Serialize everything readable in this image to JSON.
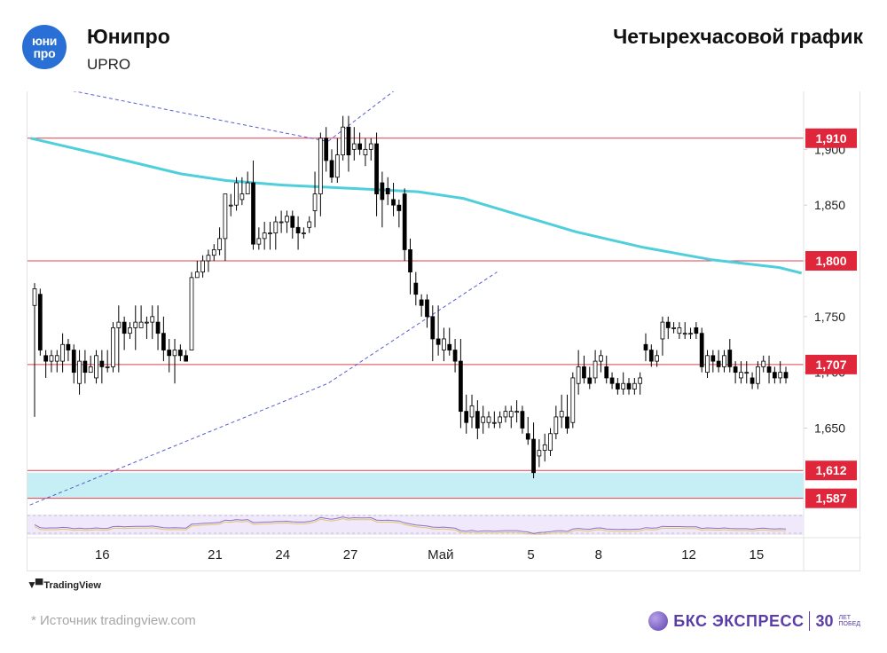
{
  "header": {
    "logo_line1": "юни",
    "logo_line2": "про",
    "company": "Юнипро",
    "ticker": "UPRO",
    "chart_title": "Четырехчасовой график"
  },
  "footer": {
    "tradingview": "TradingView",
    "source": "*  Источник tradingview.com",
    "brand_name": "БКС ЭКСПРЕСС",
    "brand_years": "30",
    "brand_small1": "ЛЕТ",
    "brand_small2": "ПОБЕД"
  },
  "colors": {
    "up": "#ffffff",
    "down": "#000000",
    "wick": "#000000",
    "ma": "#4fcfdc",
    "level": "#e0404f",
    "label_bg": "#e0263a",
    "zone": "#c6eef5",
    "channel": "#5a5fd0",
    "rsi": "#8c72c9",
    "rsi_signal": "#e3c56a"
  },
  "chart_data": {
    "type": "candlestick",
    "xlabels": [
      {
        "label": "16",
        "day": 5
      },
      {
        "label": "21",
        "day": 10
      },
      {
        "label": "24",
        "day": 13
      },
      {
        "label": "27",
        "day": 16
      },
      {
        "label": "Май",
        "day": 20
      },
      {
        "label": "5",
        "day": 24
      },
      {
        "label": "8",
        "day": 27
      },
      {
        "label": "12",
        "day": 31
      },
      {
        "label": "15",
        "day": 34
      }
    ],
    "y_ticks": [
      1.65,
      1.7,
      1.75,
      1.8,
      1.85,
      1.9
    ],
    "y_tick_labels": [
      "1,650",
      "1,700",
      "1,750",
      "1,800",
      "1,850",
      "1,900"
    ],
    "ylim": [
      1.574,
      1.952
    ],
    "levels": [
      {
        "value": 1.91,
        "label": "1,910"
      },
      {
        "value": 1.8,
        "label": "1,800"
      },
      {
        "value": 1.707,
        "label": "1,707"
      },
      {
        "value": 1.612,
        "label": "1,612"
      },
      {
        "value": 1.587,
        "label": "1,587"
      }
    ],
    "support_zone": [
      1.587,
      1.61
    ],
    "channel": {
      "upper": [
        [
          1.79,
          1.96
        ],
        [
          15.0,
          1.907
        ],
        [
          21.0,
          2.0
        ]
      ],
      "lower": [
        [
          1.79,
          1.581
        ],
        [
          15.0,
          1.69
        ],
        [
          22.5,
          1.79
        ]
      ]
    },
    "ma": [
      [
        1.82,
        1.91
      ],
      [
        5.0,
        1.895
      ],
      [
        8.5,
        1.878
      ],
      [
        10.5,
        1.872
      ],
      [
        13.0,
        1.868
      ],
      [
        16.0,
        1.865
      ],
      [
        19.0,
        1.862
      ],
      [
        21.0,
        1.856
      ],
      [
        23.0,
        1.844
      ],
      [
        26.0,
        1.826
      ],
      [
        29.0,
        1.812
      ],
      [
        32.0,
        1.801
      ],
      [
        35.0,
        1.794
      ],
      [
        36.0,
        1.789
      ]
    ],
    "candles": [
      [
        1.76,
        1.78,
        1.66,
        1.775
      ],
      [
        1.77,
        1.775,
        1.715,
        1.72
      ],
      [
        1.715,
        1.72,
        1.695,
        1.71
      ],
      [
        1.71,
        1.72,
        1.7,
        1.715
      ],
      [
        1.71,
        1.72,
        1.7,
        1.715
      ],
      [
        1.71,
        1.735,
        1.7,
        1.725
      ],
      [
        1.725,
        1.73,
        1.71,
        1.72
      ],
      [
        1.72,
        1.725,
        1.69,
        1.7
      ],
      [
        1.69,
        1.72,
        1.68,
        1.71
      ],
      [
        1.71,
        1.72,
        1.69,
        1.7
      ],
      [
        1.7,
        1.715,
        1.7,
        1.705
      ],
      [
        1.695,
        1.72,
        1.69,
        1.715
      ],
      [
        1.71,
        1.72,
        1.69,
        1.705
      ],
      [
        1.705,
        1.72,
        1.7,
        1.705
      ],
      [
        1.705,
        1.745,
        1.7,
        1.74
      ],
      [
        1.74,
        1.76,
        1.7,
        1.745
      ],
      [
        1.745,
        1.75,
        1.72,
        1.735
      ],
      [
        1.735,
        1.745,
        1.73,
        1.74
      ],
      [
        1.74,
        1.76,
        1.72,
        1.745
      ],
      [
        1.74,
        1.76,
        1.74,
        1.745
      ],
      [
        1.745,
        1.75,
        1.73,
        1.745
      ],
      [
        1.745,
        1.76,
        1.73,
        1.75
      ],
      [
        1.745,
        1.76,
        1.72,
        1.735
      ],
      [
        1.735,
        1.75,
        1.71,
        1.72
      ],
      [
        1.72,
        1.73,
        1.7,
        1.715
      ],
      [
        1.715,
        1.73,
        1.69,
        1.72
      ],
      [
        1.72,
        1.725,
        1.71,
        1.715
      ],
      [
        1.715,
        1.72,
        1.71,
        1.71
      ],
      [
        1.72,
        1.79,
        1.72,
        1.785
      ],
      [
        1.785,
        1.8,
        1.785,
        1.79
      ],
      [
        1.79,
        1.805,
        1.785,
        1.8
      ],
      [
        1.8,
        1.81,
        1.79,
        1.805
      ],
      [
        1.805,
        1.815,
        1.8,
        1.81
      ],
      [
        1.81,
        1.83,
        1.805,
        1.82
      ],
      [
        1.82,
        1.86,
        1.8,
        1.86
      ],
      [
        1.85,
        1.86,
        1.84,
        1.85
      ],
      [
        1.85,
        1.875,
        1.845,
        1.87
      ],
      [
        1.855,
        1.875,
        1.85,
        1.86
      ],
      [
        1.86,
        1.88,
        1.86,
        1.87
      ],
      [
        1.87,
        1.89,
        1.81,
        1.815
      ],
      [
        1.815,
        1.83,
        1.81,
        1.82
      ],
      [
        1.82,
        1.835,
        1.81,
        1.825
      ],
      [
        1.825,
        1.835,
        1.81,
        1.825
      ],
      [
        1.825,
        1.84,
        1.81,
        1.835
      ],
      [
        1.835,
        1.845,
        1.825,
        1.835
      ],
      [
        1.835,
        1.845,
        1.825,
        1.84
      ],
      [
        1.84,
        1.845,
        1.82,
        1.83
      ],
      [
        1.83,
        1.84,
        1.81,
        1.825
      ],
      [
        1.825,
        1.83,
        1.82,
        1.825
      ],
      [
        1.83,
        1.84,
        1.825,
        1.835
      ],
      [
        1.845,
        1.88,
        1.83,
        1.86
      ],
      [
        1.86,
        1.915,
        1.84,
        1.91
      ],
      [
        1.91,
        1.92,
        1.88,
        1.89
      ],
      [
        1.89,
        1.9,
        1.87,
        1.875
      ],
      [
        1.875,
        1.91,
        1.87,
        1.895
      ],
      [
        1.895,
        1.93,
        1.89,
        1.92
      ],
      [
        1.92,
        1.93,
        1.88,
        1.895
      ],
      [
        1.9,
        1.92,
        1.89,
        1.905
      ],
      [
        1.905,
        1.915,
        1.895,
        1.9
      ],
      [
        1.895,
        1.91,
        1.885,
        1.9
      ],
      [
        1.9,
        1.91,
        1.89,
        1.905
      ],
      [
        1.905,
        1.915,
        1.84,
        1.86
      ],
      [
        1.87,
        1.88,
        1.83,
        1.855
      ],
      [
        1.865,
        1.875,
        1.85,
        1.86
      ],
      [
        1.855,
        1.87,
        1.84,
        1.85
      ],
      [
        1.85,
        1.855,
        1.83,
        1.845
      ],
      [
        1.86,
        1.865,
        1.8,
        1.81
      ],
      [
        1.81,
        1.82,
        1.77,
        1.79
      ],
      [
        1.78,
        1.79,
        1.76,
        1.77
      ],
      [
        1.765,
        1.77,
        1.75,
        1.76
      ],
      [
        1.765,
        1.77,
        1.74,
        1.75
      ],
      [
        1.75,
        1.76,
        1.71,
        1.73
      ],
      [
        1.73,
        1.76,
        1.715,
        1.725
      ],
      [
        1.72,
        1.74,
        1.71,
        1.73
      ],
      [
        1.725,
        1.74,
        1.715,
        1.72
      ],
      [
        1.72,
        1.73,
        1.7,
        1.71
      ],
      [
        1.71,
        1.73,
        1.65,
        1.665
      ],
      [
        1.665,
        1.68,
        1.645,
        1.655
      ],
      [
        1.66,
        1.68,
        1.65,
        1.67
      ],
      [
        1.665,
        1.675,
        1.64,
        1.65
      ],
      [
        1.655,
        1.67,
        1.645,
        1.66
      ],
      [
        1.655,
        1.665,
        1.65,
        1.66
      ],
      [
        1.655,
        1.665,
        1.65,
        1.655
      ],
      [
        1.655,
        1.665,
        1.65,
        1.66
      ],
      [
        1.66,
        1.67,
        1.655,
        1.665
      ],
      [
        1.66,
        1.67,
        1.65,
        1.665
      ],
      [
        1.665,
        1.675,
        1.655,
        1.665
      ],
      [
        1.665,
        1.67,
        1.645,
        1.65
      ],
      [
        1.645,
        1.66,
        1.635,
        1.64
      ],
      [
        1.64,
        1.655,
        1.605,
        1.61
      ],
      [
        1.625,
        1.64,
        1.615,
        1.63
      ],
      [
        1.63,
        1.645,
        1.62,
        1.635
      ],
      [
        1.63,
        1.65,
        1.625,
        1.645
      ],
      [
        1.645,
        1.67,
        1.64,
        1.66
      ],
      [
        1.66,
        1.68,
        1.65,
        1.665
      ],
      [
        1.66,
        1.68,
        1.645,
        1.65
      ],
      [
        1.655,
        1.7,
        1.65,
        1.695
      ],
      [
        1.69,
        1.72,
        1.68,
        1.705
      ],
      [
        1.705,
        1.715,
        1.69,
        1.695
      ],
      [
        1.695,
        1.705,
        1.685,
        1.69
      ],
      [
        1.695,
        1.72,
        1.69,
        1.71
      ],
      [
        1.71,
        1.72,
        1.7,
        1.715
      ],
      [
        1.705,
        1.715,
        1.69,
        1.695
      ],
      [
        1.695,
        1.7,
        1.685,
        1.69
      ],
      [
        1.69,
        1.695,
        1.68,
        1.685
      ],
      [
        1.685,
        1.7,
        1.68,
        1.69
      ],
      [
        1.69,
        1.695,
        1.68,
        1.685
      ],
      [
        1.685,
        1.695,
        1.68,
        1.69
      ],
      [
        1.69,
        1.7,
        1.68,
        1.695
      ],
      [
        1.725,
        1.735,
        1.71,
        1.72
      ],
      [
        1.72,
        1.725,
        1.705,
        1.71
      ],
      [
        1.71,
        1.72,
        1.705,
        1.715
      ],
      [
        1.73,
        1.75,
        1.715,
        1.745
      ],
      [
        1.745,
        1.75,
        1.73,
        1.74
      ],
      [
        1.74,
        1.745,
        1.735,
        1.74
      ],
      [
        1.735,
        1.745,
        1.73,
        1.74
      ],
      [
        1.735,
        1.745,
        1.73,
        1.735
      ],
      [
        1.735,
        1.74,
        1.73,
        1.735
      ],
      [
        1.74,
        1.745,
        1.73,
        1.735
      ],
      [
        1.735,
        1.74,
        1.7,
        1.705
      ],
      [
        1.7,
        1.72,
        1.695,
        1.715
      ],
      [
        1.715,
        1.72,
        1.7,
        1.71
      ],
      [
        1.71,
        1.72,
        1.7,
        1.705
      ],
      [
        1.705,
        1.72,
        1.7,
        1.715
      ],
      [
        1.72,
        1.73,
        1.7,
        1.705
      ],
      [
        1.705,
        1.71,
        1.69,
        1.7
      ],
      [
        1.695,
        1.71,
        1.69,
        1.7
      ],
      [
        1.7,
        1.71,
        1.69,
        1.7
      ],
      [
        1.695,
        1.7,
        1.685,
        1.69
      ],
      [
        1.69,
        1.71,
        1.685,
        1.705
      ],
      [
        1.705,
        1.715,
        1.7,
        1.71
      ],
      [
        1.705,
        1.715,
        1.69,
        1.7
      ],
      [
        1.7,
        1.705,
        1.69,
        1.695
      ],
      [
        1.695,
        1.71,
        1.69,
        1.7
      ],
      [
        1.7,
        1.705,
        1.69,
        1.695
      ]
    ]
  }
}
